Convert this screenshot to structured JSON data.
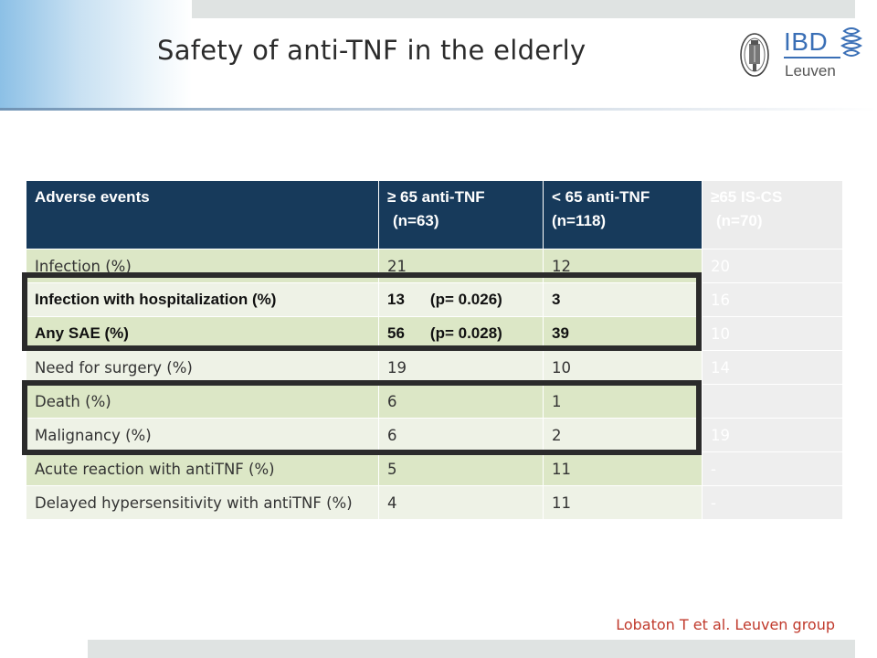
{
  "slide": {
    "title": "Safety of anti-TNF in the elderly",
    "citation": "Lobaton T et al. Leuven group"
  },
  "logo": {
    "name": "IBD",
    "subname": "Leuven",
    "seal_icon": "university-seal-icon",
    "brand_icon": "ibd-logo-icon",
    "color": "#3a6fb6"
  },
  "table": {
    "headers": [
      {
        "line1": "Adverse events",
        "line2": ""
      },
      {
        "line1": "≥ 65 anti-TNF",
        "line2": "(n=63)"
      },
      {
        "line1": "< 65 anti-TNF",
        "line2": "(n=118)"
      },
      {
        "line1": "≥65 IS-CS",
        "line2": "(n=70)"
      }
    ],
    "rows": [
      {
        "event": "Infection (%)",
        "ge65": "21",
        "pvalue": "",
        "lt65": "12",
        "iscs": "20"
      },
      {
        "event": "Infection with hospitalization  (%)",
        "ge65": "13",
        "pvalue": "(p= 0.026)",
        "lt65": "3",
        "iscs": "16"
      },
      {
        "event": "Any SAE (%)",
        "ge65": "56",
        "pvalue": "(p= 0.028)",
        "lt65": "39",
        "iscs": "10"
      },
      {
        "event": "Need for surgery (%)",
        "ge65": "19",
        "pvalue": "",
        "lt65": "10",
        "iscs": "14"
      },
      {
        "event": "Death  (%)",
        "ge65": "6",
        "pvalue": "",
        "lt65": "1",
        "iscs": ""
      },
      {
        "event": "Malignancy  (%)",
        "ge65": "6",
        "pvalue": "",
        "lt65": "2",
        "iscs": "19"
      },
      {
        "event": "Acute reaction with antiTNF  (%)",
        "ge65": "5",
        "pvalue": "",
        "lt65": "11",
        "iscs": "-"
      },
      {
        "event": "Delayed hypersensitivity with antiTNF  (%)",
        "ge65": "4",
        "pvalue": "",
        "lt65": "11",
        "iscs": "-"
      }
    ]
  },
  "colors": {
    "header_bg": "#173a5b",
    "row_odd": "#dce7c6",
    "row_even": "#eef2e6",
    "faded_column": "#eeeeee",
    "highlight_border": "#2b2b2b",
    "citation": "#c0392b"
  }
}
